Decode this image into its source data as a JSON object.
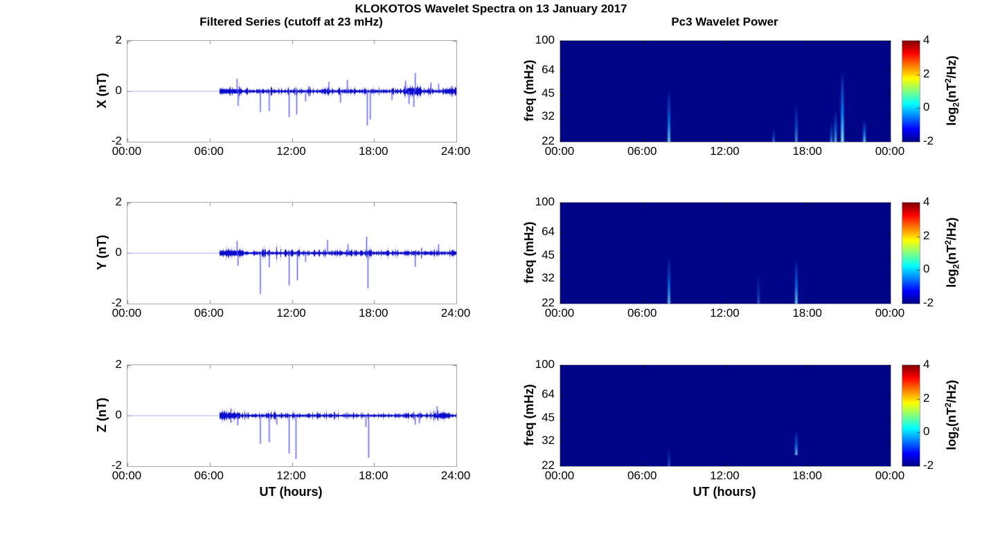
{
  "page": {
    "title": "KLOKOTOS Wavelet Spectra on 13 January 2017"
  },
  "left_column": {
    "title": "Filtered Series (cutoff at 23 mHz)",
    "xlabel": "UT (hours)",
    "x_tick_labels": [
      "00:00",
      "06:00",
      "12:00",
      "18:00",
      "24:00"
    ],
    "y_tick_labels": [
      "2",
      "0",
      "-2"
    ]
  },
  "right_column": {
    "title": "Pc3 Wavelet Power",
    "xlabel": "UT (hours)",
    "x_tick_labels": [
      "00:00",
      "06:00",
      "12:00",
      "18:00",
      "00:00"
    ],
    "freq_tick_labels": [
      "100",
      "64",
      "45",
      "32",
      "22"
    ],
    "ylabel": "freq (mHz)",
    "colorbar": {
      "tick_labels": [
        "4",
        "2",
        "0",
        "-2"
      ],
      "value_range": [
        -2,
        4
      ],
      "label_parts": [
        "log",
        "2",
        "(nT",
        "2",
        "/Hz)"
      ]
    }
  },
  "colors": {
    "trace_blue": "#0a0acd",
    "flat_line_blue": "#a5acff",
    "spectrogram_background": "#000487",
    "axis_box_gray": "#a8a8a8"
  },
  "chart_data": [
    {
      "id": "x-filtered-series",
      "type": "line",
      "row": 0,
      "column": "left",
      "ylabel": "X (nT)",
      "ylim": [
        -2,
        2
      ],
      "xlim_hours": [
        0,
        24
      ],
      "x_tick_labels": [
        "00:00",
        "06:00",
        "12:00",
        "18:00",
        "24:00"
      ],
      "y_tick_labels": [
        "2",
        "0",
        "-2"
      ],
      "y_tick_values": [
        2,
        0,
        -2
      ],
      "baseline": 0,
      "flat_until_hour": 6.7,
      "noise_amplitude": 0.08,
      "noise_bursts": [
        {
          "t0": 6.7,
          "t1": 8.3,
          "amp": 0.04
        },
        {
          "t0": 20.2,
          "t1": 21.4,
          "amp": 0.07
        },
        {
          "t0": 23.2,
          "t1": 24.0,
          "amp": 0.04
        }
      ],
      "spikes": [
        {
          "t": 8.0,
          "v": 0.5
        },
        {
          "t": 8.08,
          "v": -0.58
        },
        {
          "t": 9.7,
          "v": -0.82
        },
        {
          "t": 10.35,
          "v": -0.78
        },
        {
          "t": 11.8,
          "v": -1.02
        },
        {
          "t": 12.35,
          "v": -0.92
        },
        {
          "t": 13.0,
          "v": -0.4
        },
        {
          "t": 14.7,
          "v": 0.38
        },
        {
          "t": 15.55,
          "v": -0.45
        },
        {
          "t": 16.05,
          "v": 0.45
        },
        {
          "t": 17.5,
          "v": -1.35
        },
        {
          "t": 17.72,
          "v": -1.12
        },
        {
          "t": 19.3,
          "v": -0.35
        },
        {
          "t": 20.3,
          "v": 0.42
        },
        {
          "t": 20.55,
          "v": -0.5
        },
        {
          "t": 20.9,
          "v": -0.62
        },
        {
          "t": 21.0,
          "v": 0.72
        },
        {
          "t": 22.15,
          "v": 0.35
        },
        {
          "t": 22.7,
          "v": 0.3
        }
      ]
    },
    {
      "id": "y-filtered-series",
      "type": "line",
      "row": 1,
      "column": "left",
      "ylabel": "Y (nT)",
      "ylim": [
        -2,
        2
      ],
      "xlim_hours": [
        0,
        24
      ],
      "x_tick_labels": [
        "00:00",
        "06:00",
        "12:00",
        "18:00",
        "24:00"
      ],
      "y_tick_labels": [
        "2",
        "0",
        "-2"
      ],
      "y_tick_values": [
        2,
        0,
        -2
      ],
      "baseline": 0,
      "flat_until_hour": 6.7,
      "noise_amplitude": 0.08,
      "noise_bursts": [
        {
          "t0": 6.7,
          "t1": 8.4,
          "amp": 0.05
        },
        {
          "t0": 17.3,
          "t1": 17.8,
          "amp": 0.05
        }
      ],
      "spikes": [
        {
          "t": 8.0,
          "v": 0.48
        },
        {
          "t": 8.07,
          "v": -0.5
        },
        {
          "t": 9.7,
          "v": -1.62
        },
        {
          "t": 10.35,
          "v": -0.56
        },
        {
          "t": 11.8,
          "v": -1.28
        },
        {
          "t": 12.4,
          "v": -1.08
        },
        {
          "t": 13.0,
          "v": -0.35
        },
        {
          "t": 14.6,
          "v": 0.52
        },
        {
          "t": 16.1,
          "v": 0.35
        },
        {
          "t": 17.45,
          "v": 0.65
        },
        {
          "t": 17.55,
          "v": -1.4
        },
        {
          "t": 21.0,
          "v": -0.55
        },
        {
          "t": 22.7,
          "v": 0.36
        }
      ]
    },
    {
      "id": "z-filtered-series",
      "type": "line",
      "row": 2,
      "column": "left",
      "ylabel": "Z (nT)",
      "ylim": [
        -2,
        2
      ],
      "xlim_hours": [
        0,
        24
      ],
      "x_tick_labels": [
        "00:00",
        "06:00",
        "12:00",
        "18:00",
        "24:00"
      ],
      "y_tick_labels": [
        "2",
        "0",
        "-2"
      ],
      "y_tick_values": [
        2,
        0,
        -2
      ],
      "baseline": 0,
      "flat_until_hour": 6.7,
      "noise_amplitude": 0.07,
      "noise_bursts": [
        {
          "t0": 6.7,
          "t1": 8.2,
          "amp": 0.06
        },
        {
          "t0": 22.3,
          "t1": 23.5,
          "amp": 0.05
        }
      ],
      "spikes": [
        {
          "t": 8.05,
          "v": -0.38
        },
        {
          "t": 9.7,
          "v": -1.12
        },
        {
          "t": 10.35,
          "v": -1.05
        },
        {
          "t": 10.9,
          "v": -0.35
        },
        {
          "t": 11.8,
          "v": -1.5
        },
        {
          "t": 12.3,
          "v": -1.72
        },
        {
          "t": 17.4,
          "v": -0.45
        },
        {
          "t": 17.6,
          "v": -1.66
        },
        {
          "t": 21.0,
          "v": -0.35
        },
        {
          "t": 21.3,
          "v": -0.3
        },
        {
          "t": 22.6,
          "v": 0.38
        }
      ]
    },
    {
      "id": "x-wavelet-power",
      "type": "heatmap",
      "row": 0,
      "column": "right",
      "ylabel": "freq (mHz)",
      "freq_range_mhz": [
        22,
        100
      ],
      "log_freq_axis": true,
      "x_tick_labels": [
        "00:00",
        "06:00",
        "12:00",
        "18:00",
        "00:00"
      ],
      "freq_tick_values": [
        100,
        64,
        45,
        32,
        22
      ],
      "value_range_log2": [
        -2,
        4
      ],
      "background_value": -2,
      "streaks": [
        {
          "t": 7.9,
          "f_lo": 22,
          "f_hi": 50,
          "intensity": 0.55
        },
        {
          "t": 15.5,
          "f_lo": 22,
          "f_hi": 27,
          "intensity": 0.25
        },
        {
          "t": 17.15,
          "f_lo": 22,
          "f_hi": 40,
          "intensity": 0.35
        },
        {
          "t": 19.7,
          "f_lo": 22,
          "f_hi": 30,
          "intensity": 0.3
        },
        {
          "t": 20.0,
          "f_lo": 22,
          "f_hi": 36,
          "intensity": 0.45
        },
        {
          "t": 20.5,
          "f_lo": 22,
          "f_hi": 67,
          "intensity": 0.8
        },
        {
          "t": 22.1,
          "f_lo": 22,
          "f_hi": 31,
          "intensity": 0.55
        }
      ]
    },
    {
      "id": "y-wavelet-power",
      "type": "heatmap",
      "row": 1,
      "column": "right",
      "ylabel": "freq (mHz)",
      "freq_range_mhz": [
        22,
        100
      ],
      "log_freq_axis": true,
      "x_tick_labels": [
        "00:00",
        "06:00",
        "12:00",
        "18:00",
        "00:00"
      ],
      "freq_tick_values": [
        100,
        64,
        45,
        32,
        22
      ],
      "value_range_log2": [
        -2,
        4
      ],
      "background_value": -2,
      "streaks": [
        {
          "t": 7.9,
          "f_lo": 22,
          "f_hi": 46,
          "intensity": 0.5
        },
        {
          "t": 14.4,
          "f_lo": 22,
          "f_hi": 35,
          "intensity": 0.2
        },
        {
          "t": 17.15,
          "f_lo": 22,
          "f_hi": 44,
          "intensity": 0.55
        }
      ]
    },
    {
      "id": "z-wavelet-power",
      "type": "heatmap",
      "row": 2,
      "column": "right",
      "ylabel": "freq (mHz)",
      "freq_range_mhz": [
        22,
        100
      ],
      "log_freq_axis": true,
      "x_tick_labels": [
        "00:00",
        "06:00",
        "12:00",
        "18:00",
        "00:00"
      ],
      "freq_tick_values": [
        100,
        64,
        45,
        32,
        22
      ],
      "value_range_log2": [
        -2,
        4
      ],
      "background_value": -2,
      "streaks": [
        {
          "t": 7.9,
          "f_lo": 22,
          "f_hi": 30,
          "intensity": 0.18
        },
        {
          "t": 17.15,
          "f_lo": 26,
          "f_hi": 38,
          "intensity": 0.5
        }
      ]
    }
  ]
}
